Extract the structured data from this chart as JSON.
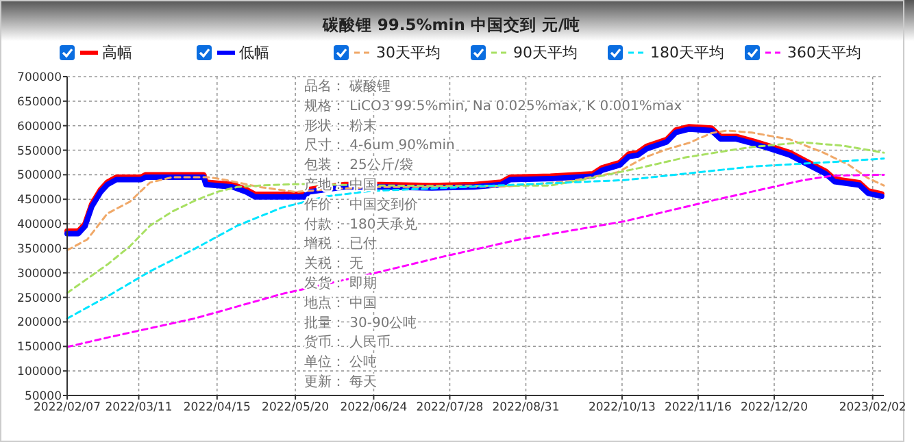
{
  "chart_data": {
    "type": "line",
    "title": "碳酸锂 99.5%min 中国交到 元/吨",
    "x": [
      "2022-02-07",
      "2022-02-12",
      "2022-02-15",
      "2022-02-18",
      "2022-02-22",
      "2022-02-25",
      "2022-03-01",
      "2022-03-12",
      "2022-03-14",
      "2022-04-09",
      "2022-04-10",
      "2022-04-22",
      "2022-04-28",
      "2022-05-02",
      "2022-05-24",
      "2022-05-26",
      "2022-06-03",
      "2022-06-11",
      "2022-06-27",
      "2022-07-20",
      "2022-08-08",
      "2022-08-20",
      "2022-08-24",
      "2022-09-11",
      "2022-09-30",
      "2022-10-04",
      "2022-10-12",
      "2022-10-16",
      "2022-10-20",
      "2022-10-24",
      "2022-11-02",
      "2022-11-06",
      "2022-11-12",
      "2022-11-22",
      "2022-11-26",
      "2022-12-03",
      "2022-12-11",
      "2022-12-19",
      "2022-12-27",
      "2023-01-04",
      "2023-01-12",
      "2023-01-16",
      "2023-01-27",
      "2023-01-31",
      "2023-02-06"
    ],
    "series": [
      {
        "name": "高幅",
        "color": "#ff0000",
        "line_style": "solid",
        "values": [
          385000,
          385000,
          400000,
          440000,
          470000,
          485000,
          495000,
          495000,
          500000,
          500000,
          485000,
          480000,
          470000,
          460000,
          460000,
          470000,
          475000,
          480000,
          480000,
          478000,
          480000,
          485000,
          495000,
          497000,
          502000,
          514000,
          525000,
          542000,
          545000,
          558000,
          572000,
          591000,
          598000,
          595000,
          578000,
          578000,
          568000,
          557000,
          545000,
          526000,
          507000,
          491000,
          484000,
          467000,
          461000
        ]
      },
      {
        "name": "低幅",
        "color": "#0000ff",
        "line_style": "solid",
        "values": [
          380000,
          380000,
          395000,
          435000,
          465000,
          480000,
          490000,
          490000,
          495000,
          495000,
          480000,
          475000,
          465000,
          455000,
          455000,
          465000,
          470000,
          475000,
          475000,
          473000,
          475000,
          480000,
          490000,
          492000,
          497000,
          509000,
          520000,
          537000,
          540000,
          553000,
          567000,
          586000,
          593000,
          590000,
          573000,
          573000,
          563000,
          552000,
          540000,
          521000,
          502000,
          486000,
          479000,
          462000,
          456000
        ]
      },
      {
        "name": "30天平均",
        "color": "#f0a868",
        "line_style": "dashed",
        "x": [
          "2022-02-07",
          "2022-02-16",
          "2022-02-25",
          "2022-03-07",
          "2022-03-16",
          "2022-03-26",
          "2022-04-11",
          "2022-04-18",
          "2022-05-04",
          "2022-05-20",
          "2022-06-03",
          "2022-06-23",
          "2022-07-28",
          "2022-08-22",
          "2022-09-20",
          "2022-09-29",
          "2022-10-11",
          "2022-10-17",
          "2022-10-23",
          "2022-11-02",
          "2022-11-12",
          "2022-11-22",
          "2022-11-29",
          "2022-12-10",
          "2022-12-27",
          "2023-01-11",
          "2023-01-22",
          "2023-01-31",
          "2023-02-07"
        ],
        "values": [
          346000,
          368000,
          421000,
          445000,
          484000,
          495000,
          495000,
          490000,
          475000,
          465000,
          470000,
          475000,
          475000,
          476000,
          487000,
          495000,
          505000,
          520000,
          535000,
          552000,
          565000,
          585000,
          590000,
          586000,
          572000,
          545000,
          521000,
          493000,
          478000
        ]
      },
      {
        "name": "90天平均",
        "color": "#a8e063",
        "line_style": "dashed",
        "x": [
          "2022-02-07",
          "2022-02-25",
          "2022-03-07",
          "2022-03-16",
          "2022-03-26",
          "2022-04-05",
          "2022-04-15",
          "2022-04-24",
          "2022-05-04",
          "2022-05-14",
          "2022-05-24",
          "2022-06-23",
          "2022-07-28",
          "2022-09-11",
          "2022-09-29",
          "2022-10-21",
          "2022-11-10",
          "2022-11-29",
          "2022-12-11",
          "2023-01-02",
          "2023-01-20",
          "2023-02-07"
        ],
        "values": [
          259000,
          317000,
          354000,
          396000,
          425000,
          447000,
          465000,
          475000,
          478000,
          480000,
          481000,
          478000,
          477000,
          478000,
          493000,
          514000,
          535000,
          549000,
          557000,
          566000,
          559000,
          545000
        ]
      },
      {
        "name": "180天平均",
        "color": "#00e5ff",
        "line_style": "dashed",
        "x": [
          "2022-02-07",
          "2022-02-25",
          "2022-03-16",
          "2022-04-05",
          "2022-04-24",
          "2022-05-14",
          "2022-06-03",
          "2022-06-23",
          "2022-07-25",
          "2022-08-28",
          "2022-10-14",
          "2022-11-12",
          "2022-12-11",
          "2023-01-15",
          "2023-02-07"
        ],
        "values": [
          207000,
          252000,
          303000,
          349000,
          396000,
          433000,
          456000,
          467000,
          473000,
          480000,
          489000,
          503000,
          517000,
          526000,
          533000
        ]
      },
      {
        "name": "360天平均",
        "color": "#ff00ff",
        "line_style": "dashed",
        "x": [
          "2022-02-07",
          "2022-02-25",
          "2022-04-05",
          "2022-05-14",
          "2022-06-23",
          "2022-07-25",
          "2022-08-28",
          "2022-10-14",
          "2022-11-22",
          "2023-01-02",
          "2023-01-15",
          "2023-02-07"
        ],
        "values": [
          149000,
          168000,
          207000,
          257000,
          298000,
          333000,
          368000,
          405000,
          447000,
          489000,
          498000,
          500000
        ]
      }
    ],
    "xlim": [
      "2022-02-07",
      "2023-02-07"
    ],
    "xticks": [
      {
        "value": "2022-02-07",
        "label": "2022/02/07"
      },
      {
        "value": "2022-03-11",
        "label": "2022/03/11"
      },
      {
        "value": "2022-04-15",
        "label": "2022/04/15"
      },
      {
        "value": "2022-05-20",
        "label": "2022/05/20"
      },
      {
        "value": "2022-06-24",
        "label": "2022/06/24"
      },
      {
        "value": "2022-07-28",
        "label": "2022/07/28"
      },
      {
        "value": "2022-08-31",
        "label": "2022/08/31"
      },
      {
        "value": "2022-10-13",
        "label": "2022/10/13"
      },
      {
        "value": "2022-11-16",
        "label": "2022/11/16"
      },
      {
        "value": "2022-12-20",
        "label": "2022/12/20"
      },
      {
        "value": "2023-02-02",
        "label": "2023/02/02"
      }
    ],
    "ylim": [
      50000,
      700000
    ],
    "yticks": [
      50000,
      100000,
      150000,
      200000,
      250000,
      300000,
      350000,
      400000,
      450000,
      500000,
      550000,
      600000,
      650000,
      700000
    ],
    "grid": true,
    "legend": "top",
    "annotations": [
      "品名：  碳酸锂",
      "规格：  LiCO3 99.5%min, Na 0.025%max, K 0.001%max",
      "形状：  粉末",
      "尺寸：  4-6um 90%min",
      "包装：  25公斤/袋",
      "产地：  中国",
      "作价：  中国交到价",
      "付款：  180天承兑",
      "增税：  已付",
      "关税：  无",
      "发货：  即期",
      "地点：  中国",
      "批量：  30-90公吨",
      "货币：  人民币",
      "单位：  公吨",
      "更新：  每天"
    ]
  }
}
